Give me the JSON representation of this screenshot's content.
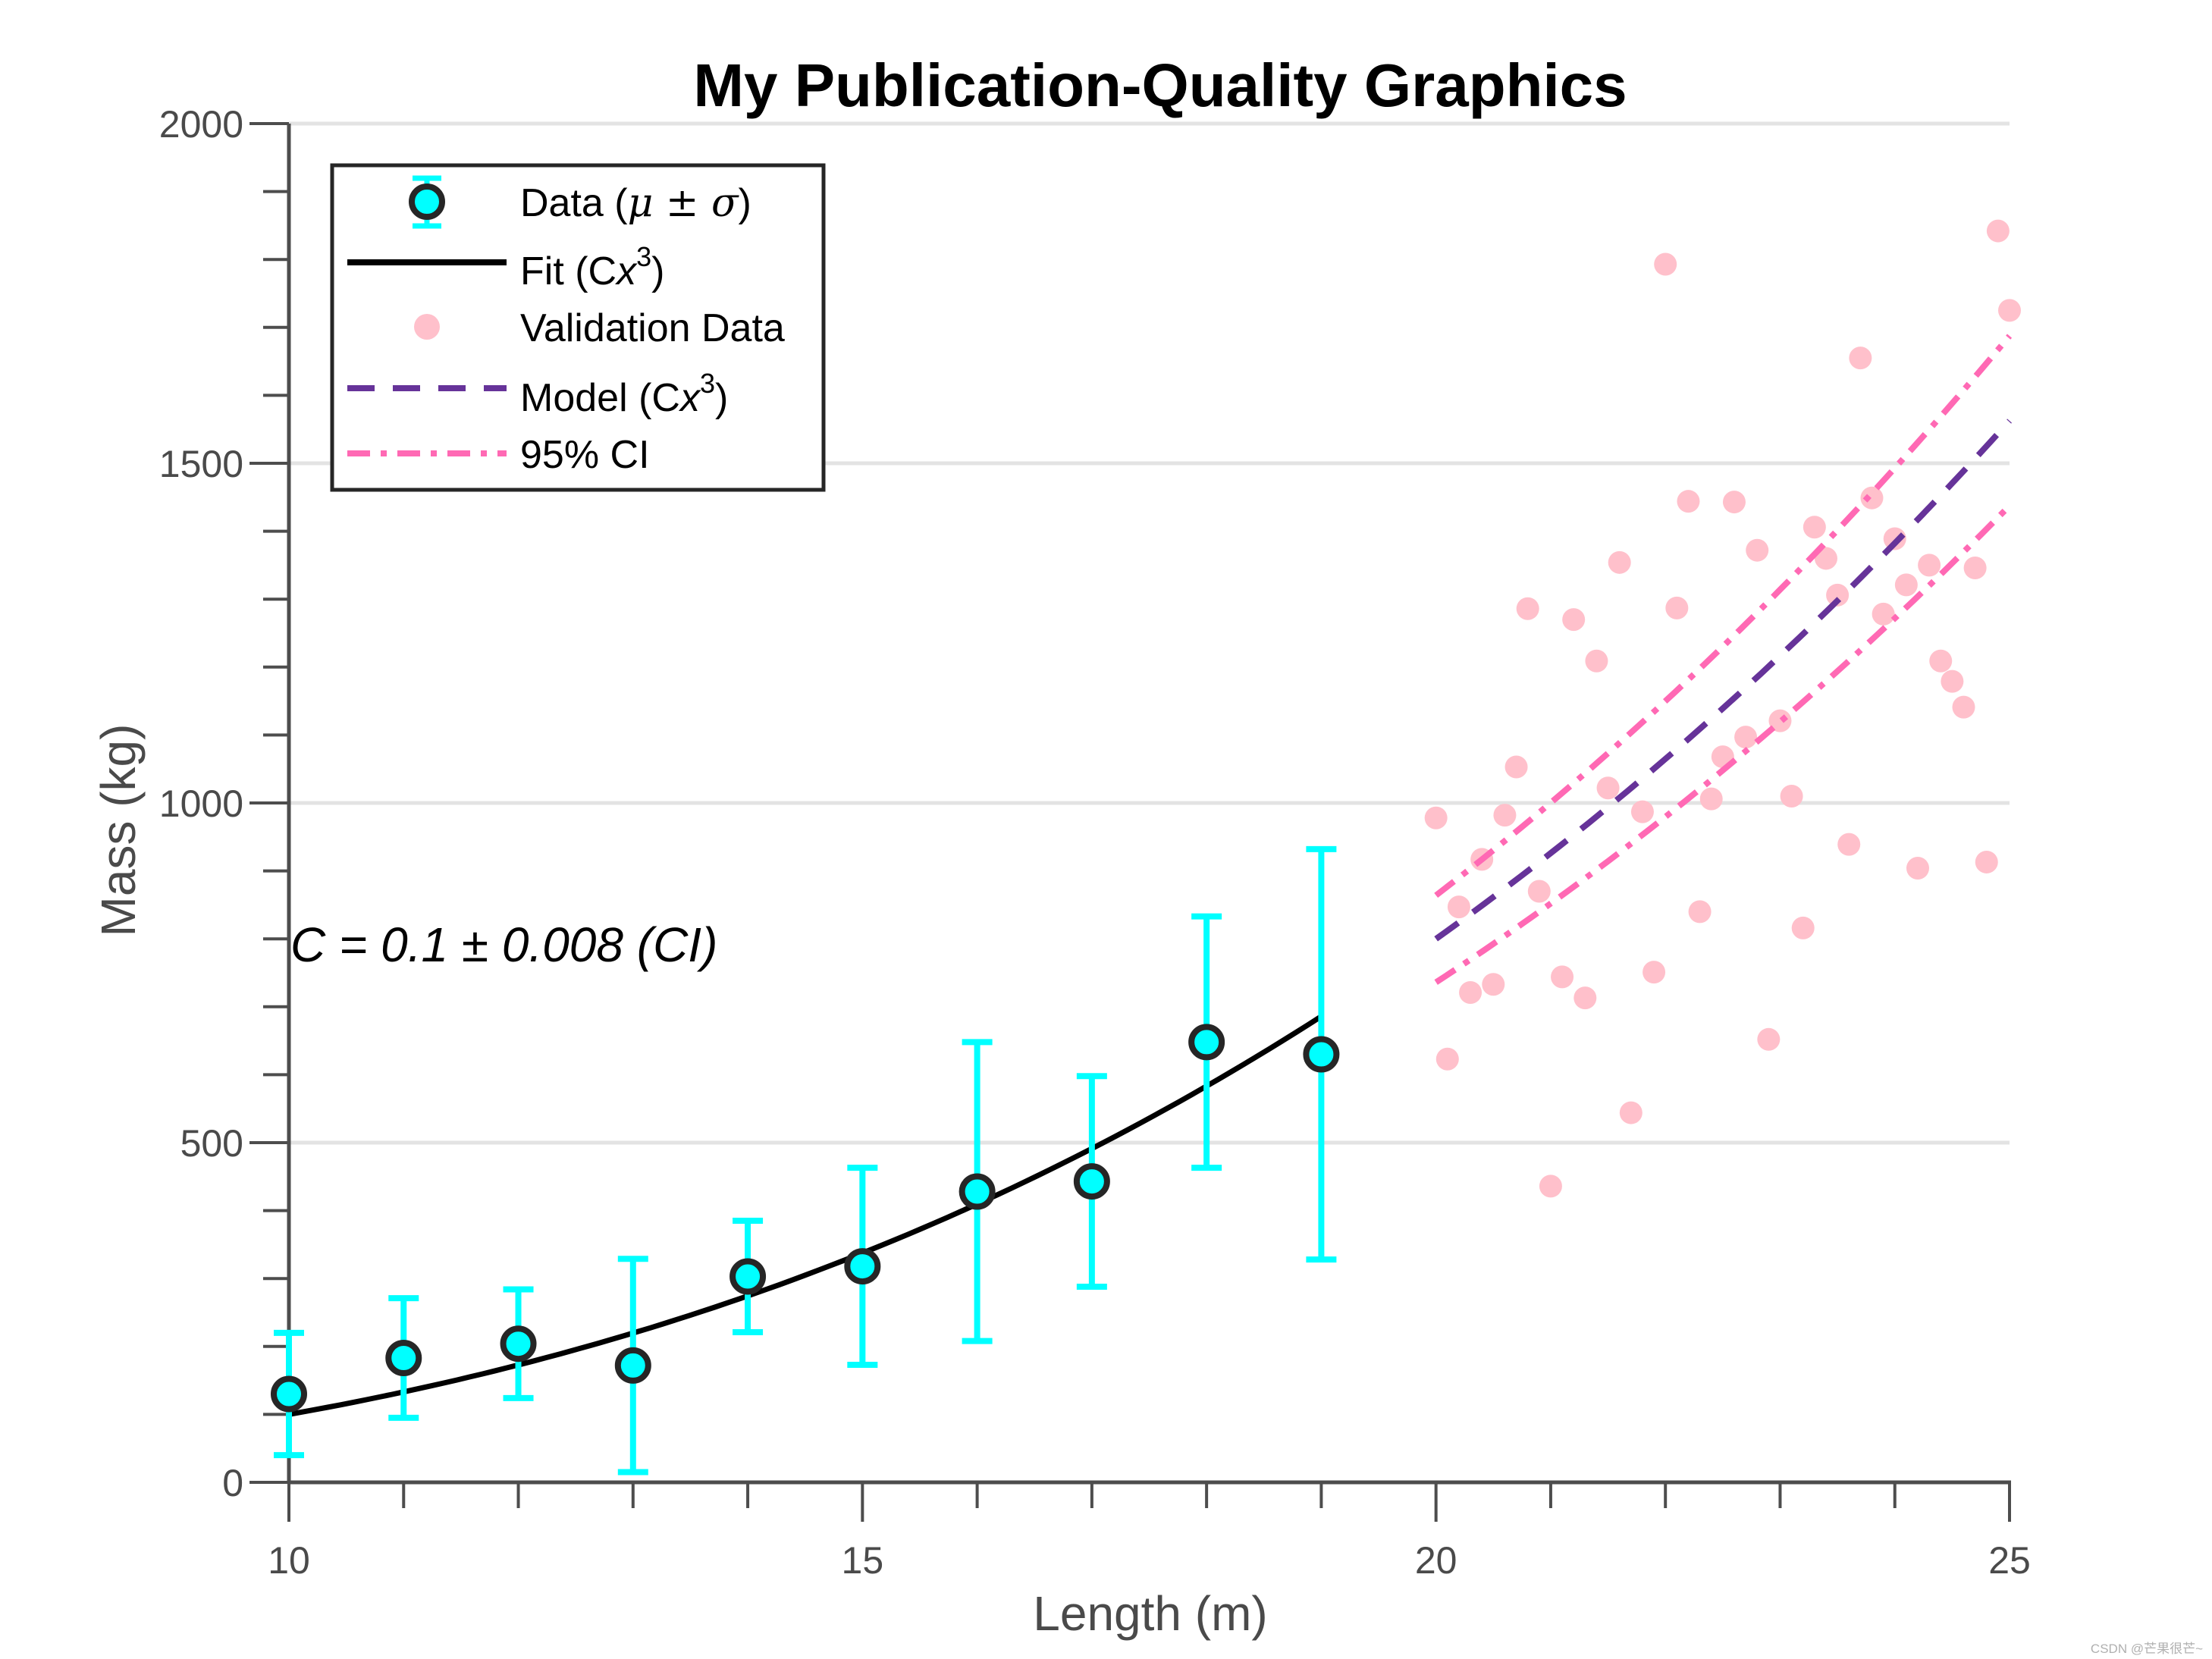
{
  "chart_data": {
    "type": "scatter",
    "title": "My Publication-Quality Graphics",
    "xlabel": "Length (m)",
    "ylabel": "Mass (kg)",
    "xlim": [
      10,
      25
    ],
    "ylim": [
      0,
      2000
    ],
    "x_ticks": [
      10,
      15,
      20,
      25
    ],
    "y_ticks": [
      0,
      500,
      1000,
      1500,
      2000
    ],
    "x_minor_step": 1,
    "y_minor_step": 100,
    "grid": "horizontal major",
    "legend_position": "top-left",
    "annotation": {
      "text": "C = 0.1 ± 0.008 (CI)",
      "x": 10,
      "y": 800
    },
    "series": [
      {
        "name": "Data (μ ± σ)",
        "name_parts": [
          "Data (",
          "μ ± σ",
          ")"
        ],
        "style": "errorbar",
        "color": "#00ffff",
        "marker_edge": "#262626",
        "points": [
          {
            "x": 10,
            "y": 130,
            "err": 90
          },
          {
            "x": 11,
            "y": 183,
            "err": 88
          },
          {
            "x": 12,
            "y": 204,
            "err": 80
          },
          {
            "x": 13,
            "y": 172,
            "err": 157
          },
          {
            "x": 14,
            "y": 303,
            "err": 82
          },
          {
            "x": 15,
            "y": 318,
            "err": 145
          },
          {
            "x": 16,
            "y": 428,
            "err": 220
          },
          {
            "x": 17,
            "y": 443,
            "err": 155
          },
          {
            "x": 18,
            "y": 648,
            "err": 185
          },
          {
            "x": 19,
            "y": 630,
            "err": 302
          }
        ]
      },
      {
        "name": "Fit (Cx3)",
        "name_parts": [
          "Fit (C",
          "x",
          "3",
          ")"
        ],
        "style": "line",
        "color": "#000000",
        "formula": "C*x^3",
        "C": 0.1,
        "x_range": [
          10,
          19
        ]
      },
      {
        "name": "Validation Data",
        "style": "scatter",
        "color": "#ffc0cb",
        "points": [
          [
            20.0,
            978
          ],
          [
            20.1,
            623
          ],
          [
            20.2,
            847
          ],
          [
            20.3,
            721
          ],
          [
            20.4,
            917
          ],
          [
            20.5,
            733
          ],
          [
            20.6,
            982
          ],
          [
            20.7,
            1053
          ],
          [
            20.8,
            1286
          ],
          [
            20.9,
            870
          ],
          [
            21.0,
            436
          ],
          [
            21.1,
            744
          ],
          [
            21.2,
            1270
          ],
          [
            21.3,
            713
          ],
          [
            21.4,
            1209
          ],
          [
            21.5,
            1022
          ],
          [
            21.6,
            1354
          ],
          [
            21.7,
            544
          ],
          [
            21.8,
            987
          ],
          [
            21.9,
            751
          ],
          [
            22.0,
            1793
          ],
          [
            22.1,
            1287
          ],
          [
            22.2,
            1444
          ],
          [
            22.3,
            840
          ],
          [
            22.4,
            1006
          ],
          [
            22.5,
            1068
          ],
          [
            22.6,
            1443
          ],
          [
            22.7,
            1097
          ],
          [
            22.8,
            1372
          ],
          [
            22.9,
            652
          ],
          [
            23.0,
            1121
          ],
          [
            23.1,
            1010
          ],
          [
            23.2,
            816
          ],
          [
            23.3,
            1406
          ],
          [
            23.4,
            1360
          ],
          [
            23.5,
            1306
          ],
          [
            23.6,
            939
          ],
          [
            23.7,
            1655
          ],
          [
            23.8,
            1449
          ],
          [
            23.9,
            1278
          ],
          [
            24.0,
            1389
          ],
          [
            24.1,
            1321
          ],
          [
            24.2,
            904
          ],
          [
            24.3,
            1350
          ],
          [
            24.4,
            1209
          ],
          [
            24.5,
            1179
          ],
          [
            24.6,
            1141
          ],
          [
            24.7,
            1346
          ],
          [
            24.8,
            913
          ],
          [
            24.9,
            1842
          ],
          [
            25.0,
            1725
          ]
        ]
      },
      {
        "name": "Model (Cx3)",
        "name_parts": [
          "Model (C",
          "x",
          "3",
          ")"
        ],
        "style": "dashed",
        "color": "#663399",
        "formula": "C*x^3",
        "C": 0.1,
        "x_range": [
          20,
          25
        ]
      },
      {
        "name": "95% CI",
        "style": "dashdot",
        "color": "#ff69b4",
        "formula": "(C ± 0.008)*x^3",
        "C_upper": 0.108,
        "C_lower": 0.092,
        "x_range": [
          20,
          25
        ]
      }
    ]
  },
  "watermark": "CSDN @芒果很芒~"
}
